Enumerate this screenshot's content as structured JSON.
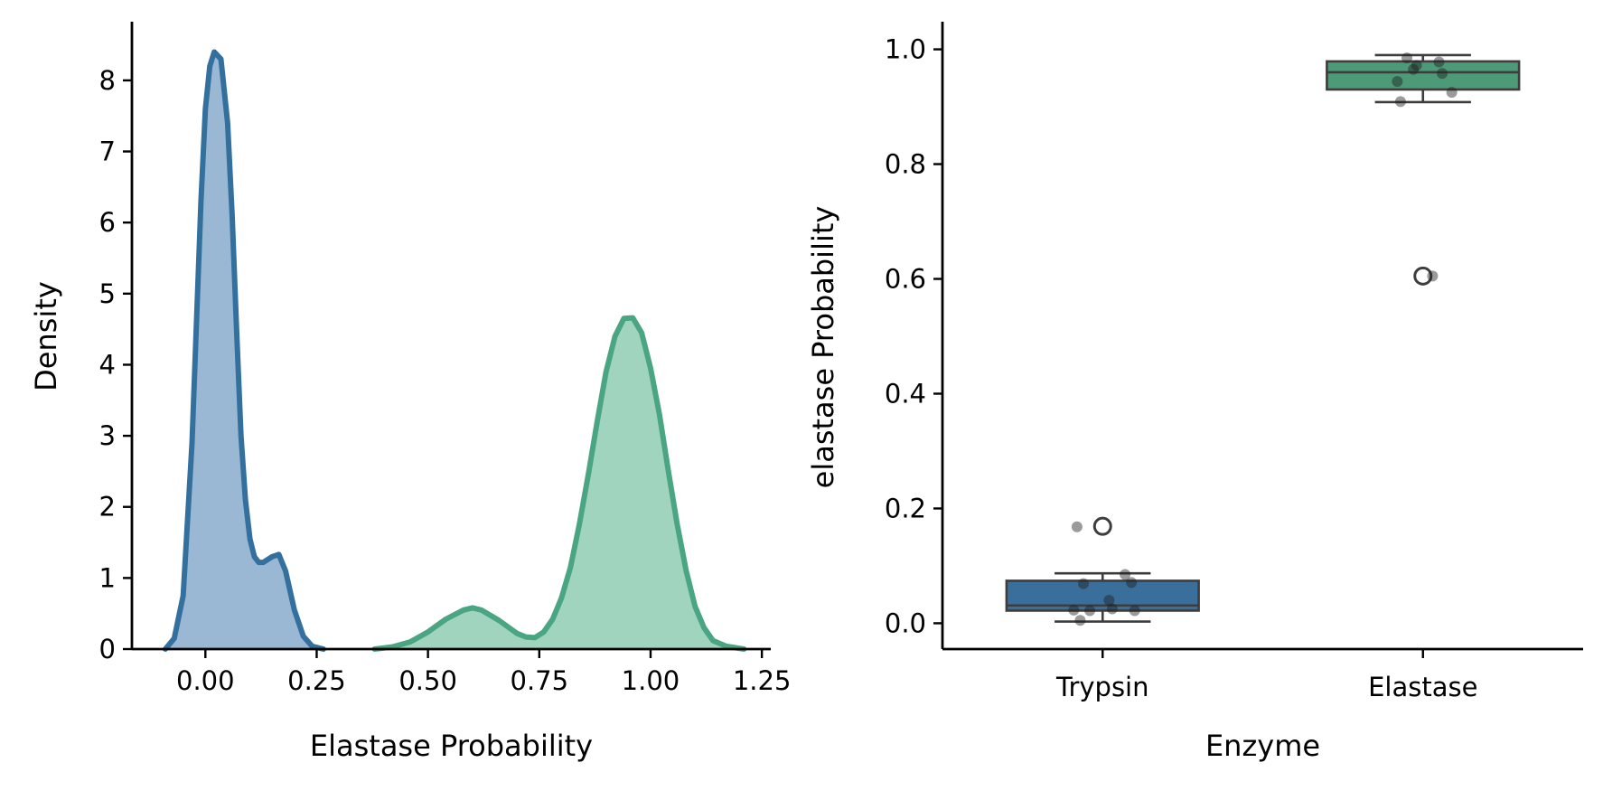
{
  "chart_data": [
    {
      "type": "area",
      "xlabel": "Elastase Probability",
      "ylabel": "Density",
      "xlim": [
        -0.165,
        1.27
      ],
      "ylim": [
        0,
        8.8
      ],
      "xticks": [
        0.0,
        0.25,
        0.5,
        0.75,
        1.0,
        1.25
      ],
      "xtick_labels": [
        "0.00",
        "0.25",
        "0.50",
        "0.75",
        "1.00",
        "1.25"
      ],
      "yticks": [
        0,
        1,
        2,
        3,
        4,
        5,
        6,
        7,
        8
      ],
      "ytick_labels": [
        "0",
        "1",
        "2",
        "3",
        "4",
        "5",
        "6",
        "7",
        "8"
      ],
      "grid": false,
      "series": [
        {
          "color": "#33709e",
          "fill": "#9ab8d3",
          "x": [
            -0.09,
            -0.07,
            -0.05,
            -0.03,
            -0.01,
            0.0,
            0.01,
            0.02,
            0.035,
            0.05,
            0.06,
            0.07,
            0.08,
            0.09,
            0.1,
            0.11,
            0.12,
            0.13,
            0.15,
            0.165,
            0.18,
            0.2,
            0.22,
            0.24,
            0.265
          ],
          "y": [
            0.0,
            0.15,
            0.75,
            2.9,
            6.3,
            7.6,
            8.2,
            8.4,
            8.3,
            7.4,
            6.1,
            4.5,
            3.0,
            2.1,
            1.55,
            1.3,
            1.22,
            1.22,
            1.3,
            1.33,
            1.1,
            0.55,
            0.18,
            0.04,
            0.0
          ]
        },
        {
          "color": "#4aa682",
          "fill": "#a1d4bf",
          "x": [
            0.38,
            0.42,
            0.46,
            0.5,
            0.54,
            0.58,
            0.6,
            0.62,
            0.66,
            0.7,
            0.72,
            0.74,
            0.76,
            0.78,
            0.8,
            0.82,
            0.84,
            0.86,
            0.88,
            0.9,
            0.92,
            0.94,
            0.96,
            0.98,
            1.0,
            1.02,
            1.04,
            1.06,
            1.08,
            1.1,
            1.12,
            1.14,
            1.17,
            1.21
          ],
          "y": [
            0.0,
            0.03,
            0.1,
            0.24,
            0.42,
            0.55,
            0.58,
            0.55,
            0.4,
            0.22,
            0.17,
            0.16,
            0.24,
            0.42,
            0.72,
            1.15,
            1.75,
            2.45,
            3.2,
            3.9,
            4.4,
            4.65,
            4.66,
            4.45,
            3.95,
            3.3,
            2.5,
            1.75,
            1.1,
            0.6,
            0.3,
            0.12,
            0.04,
            0.0
          ]
        }
      ]
    },
    {
      "type": "box",
      "xlabel": "Enzyme",
      "ylabel": "elastase Probability",
      "categories": [
        "Trypsin",
        "Elastase"
      ],
      "ylim": [
        -0.045,
        1.045
      ],
      "yticks": [
        0.0,
        0.2,
        0.4,
        0.6,
        0.8,
        1.0
      ],
      "ytick_labels": [
        "0.0",
        "0.2",
        "0.4",
        "0.6",
        "0.8",
        "1.0"
      ],
      "grid": false,
      "boxes": [
        {
          "category": "Trypsin",
          "color": "#3a6f9c",
          "whisker_low": 0.003,
          "q1": 0.022,
          "median": 0.031,
          "q3": 0.074,
          "whisker_high": 0.087,
          "outliers": [
            0.169
          ],
          "points": [
            {
              "dx": -0.08,
              "y": 0.168
            },
            {
              "dx": -0.06,
              "y": 0.069
            },
            {
              "dx": 0.07,
              "y": 0.085
            },
            {
              "dx": 0.09,
              "y": 0.071
            },
            {
              "dx": 0.02,
              "y": 0.04
            },
            {
              "dx": -0.04,
              "y": 0.022
            },
            {
              "dx": -0.09,
              "y": 0.023
            },
            {
              "dx": 0.1,
              "y": 0.022
            },
            {
              "dx": 0.03,
              "y": 0.025
            },
            {
              "dx": -0.07,
              "y": 0.005
            }
          ]
        },
        {
          "category": "Elastase",
          "color": "#4d9a78",
          "whisker_low": 0.908,
          "q1": 0.93,
          "median": 0.96,
          "q3": 0.979,
          "whisker_high": 0.99,
          "outliers": [
            0.605
          ],
          "points": [
            {
              "dx": -0.05,
              "y": 0.985
            },
            {
              "dx": -0.02,
              "y": 0.972
            },
            {
              "dx": 0.05,
              "y": 0.978
            },
            {
              "dx": -0.03,
              "y": 0.965
            },
            {
              "dx": 0.06,
              "y": 0.958
            },
            {
              "dx": -0.08,
              "y": 0.944
            },
            {
              "dx": 0.09,
              "y": 0.925
            },
            {
              "dx": -0.07,
              "y": 0.909
            },
            {
              "dx": 0.03,
              "y": 0.605
            }
          ]
        }
      ]
    }
  ]
}
